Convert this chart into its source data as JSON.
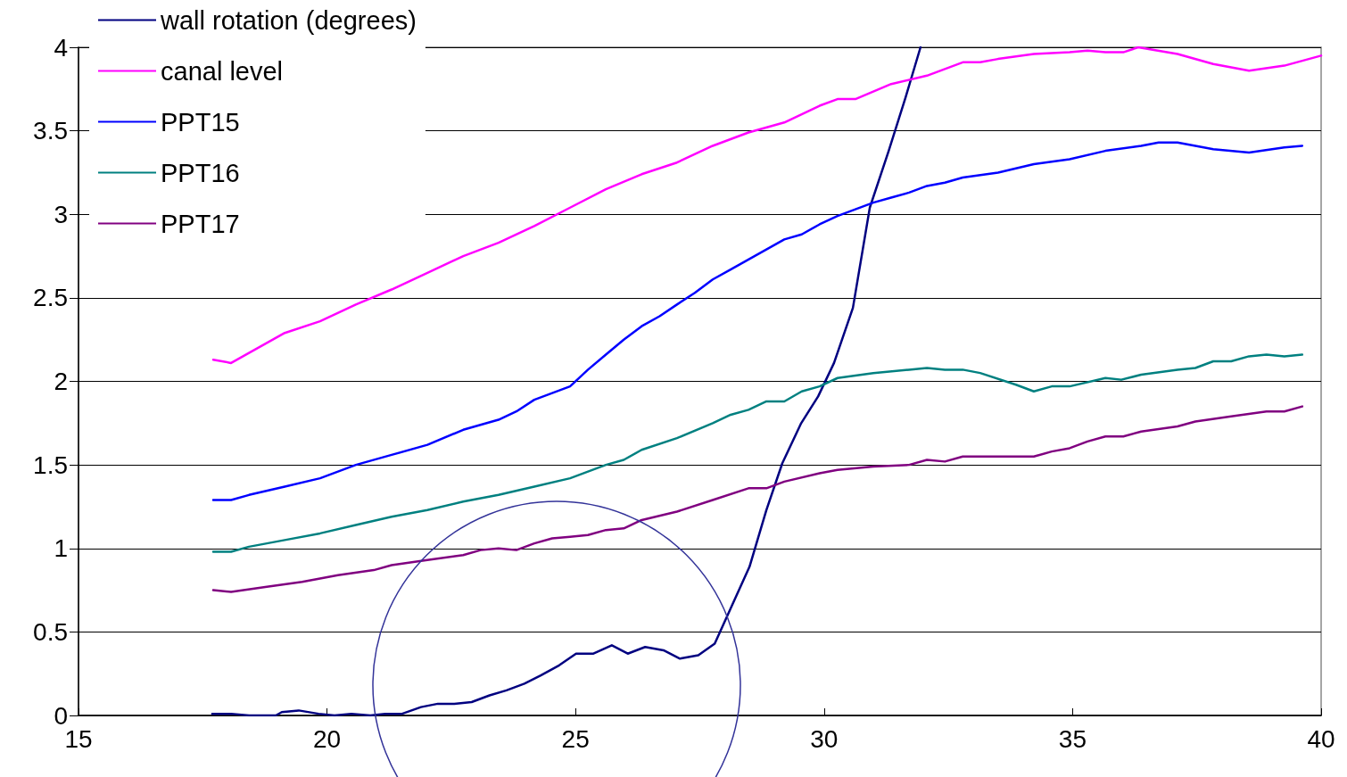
{
  "chart_data": {
    "type": "line",
    "xlim": [
      15,
      40
    ],
    "xticks": [
      15,
      20,
      25,
      30,
      35,
      40
    ],
    "ylim": [
      0,
      4
    ],
    "yticks": [
      0,
      0.5,
      1,
      1.5,
      2,
      2.5,
      3,
      3.5,
      4
    ],
    "grid": "y",
    "legend": "top left",
    "marker": "none",
    "line_style": "solid",
    "series": [
      {
        "name": "wall rotation (degrees)",
        "color": "#000080",
        "x": [
          17.69,
          18.07,
          18.43,
          18.97,
          19.09,
          19.43,
          19.83,
          20.15,
          20.49,
          20.87,
          21.17,
          21.51,
          21.89,
          22.23,
          22.56,
          22.91,
          23.27,
          23.61,
          23.97,
          24.3,
          24.67,
          25.01,
          25.36,
          25.73,
          26.05,
          26.4,
          26.77,
          27.1,
          27.47,
          27.8,
          28.5,
          28.84,
          29.16,
          29.54,
          29.88,
          30.2,
          30.58,
          30.92,
          31.3,
          31.64,
          31.94
        ],
        "values": [
          0.01,
          0.01,
          0,
          0,
          0.02,
          0.03,
          0.01,
          0,
          0.01,
          0,
          0.01,
          0.01,
          0.05,
          0.07,
          0.07,
          0.08,
          0.12,
          0.15,
          0.19,
          0.24,
          0.3,
          0.37,
          0.37,
          0.42,
          0.37,
          0.41,
          0.39,
          0.34,
          0.36,
          0.43,
          0.89,
          1.23,
          1.51,
          1.75,
          1.91,
          2.11,
          2.44,
          3.04,
          3.38,
          3.7,
          4
        ]
      },
      {
        "name": "canal level",
        "color": "#ff00ff",
        "x": [
          17.71,
          18.07,
          18.43,
          19.15,
          19.86,
          20.58,
          21.3,
          22.02,
          22.74,
          23.45,
          24.17,
          24.89,
          25.61,
          26.33,
          27.04,
          27.76,
          28.48,
          29.2,
          29.91,
          30.27,
          30.63,
          31.35,
          32.07,
          32.79,
          33.14,
          33.5,
          34.22,
          34.94,
          35.3,
          35.66,
          36.02,
          36.32,
          37.11,
          37.83,
          38.55,
          39.26,
          40
        ],
        "values": [
          2.13,
          2.11,
          2.17,
          2.29,
          2.36,
          2.46,
          2.55,
          2.65,
          2.75,
          2.83,
          2.93,
          3.04,
          3.15,
          3.24,
          3.31,
          3.41,
          3.49,
          3.55,
          3.65,
          3.69,
          3.69,
          3.78,
          3.83,
          3.91,
          3.91,
          3.93,
          3.96,
          3.97,
          3.98,
          3.97,
          3.97,
          4,
          3.96,
          3.9,
          3.86,
          3.89,
          3.95
        ]
      },
      {
        "name": "PPT15",
        "color": "#0000ff",
        "x": [
          17.71,
          18.07,
          18.43,
          19.15,
          19.86,
          20.58,
          21.3,
          22.02,
          22.74,
          23.45,
          23.81,
          24.17,
          24.89,
          25.25,
          25.61,
          25.97,
          26.33,
          26.69,
          27.04,
          27.4,
          27.76,
          28.12,
          28.48,
          28.84,
          29.2,
          29.55,
          29.91,
          30.27,
          30.63,
          30.99,
          31.35,
          31.71,
          32.07,
          32.43,
          32.79,
          33.5,
          34.22,
          34.94,
          35.66,
          36.38,
          36.73,
          37.11,
          37.83,
          38.55,
          39.26,
          39.62
        ],
        "values": [
          1.29,
          1.29,
          1.32,
          1.37,
          1.42,
          1.5,
          1.56,
          1.62,
          1.71,
          1.77,
          1.82,
          1.89,
          1.97,
          2.07,
          2.16,
          2.25,
          2.33,
          2.39,
          2.46,
          2.53,
          2.61,
          2.67,
          2.73,
          2.79,
          2.85,
          2.88,
          2.94,
          2.99,
          3.03,
          3.07,
          3.1,
          3.13,
          3.17,
          3.19,
          3.22,
          3.25,
          3.3,
          3.33,
          3.38,
          3.41,
          3.43,
          3.43,
          3.39,
          3.37,
          3.4,
          3.41
        ]
      },
      {
        "name": "PPT16",
        "color": "#008080",
        "x": [
          17.71,
          18.07,
          18.43,
          19.15,
          19.86,
          20.58,
          21.3,
          22.02,
          22.74,
          23.45,
          24.17,
          24.89,
          25.61,
          25.97,
          26.33,
          27.04,
          27.76,
          28.12,
          28.48,
          28.84,
          29.2,
          29.55,
          29.91,
          30.27,
          30.99,
          31.71,
          32.07,
          32.43,
          32.79,
          33.14,
          33.86,
          34.22,
          34.58,
          34.94,
          35.66,
          35.98,
          36.38,
          37.11,
          37.47,
          37.83,
          38.19,
          38.55,
          38.9,
          39.26,
          39.62
        ],
        "values": [
          0.98,
          0.98,
          1.01,
          1.05,
          1.09,
          1.14,
          1.19,
          1.23,
          1.28,
          1.32,
          1.37,
          1.42,
          1.5,
          1.53,
          1.59,
          1.66,
          1.75,
          1.8,
          1.83,
          1.88,
          1.88,
          1.94,
          1.97,
          2.02,
          2.05,
          2.07,
          2.08,
          2.07,
          2.07,
          2.05,
          1.98,
          1.94,
          1.97,
          1.97,
          2.02,
          2.01,
          2.04,
          2.07,
          2.08,
          2.12,
          2.12,
          2.15,
          2.16,
          2.15,
          2.16
        ]
      },
      {
        "name": "PPT17",
        "color": "#800080",
        "x": [
          17.71,
          18.07,
          18.79,
          19.5,
          20.22,
          20.94,
          21.3,
          22.02,
          22.74,
          23.09,
          23.45,
          23.81,
          24.17,
          24.53,
          24.89,
          25.25,
          25.61,
          25.97,
          26.33,
          27.04,
          27.76,
          28.48,
          28.84,
          29.2,
          29.91,
          30.27,
          30.99,
          31.71,
          32.07,
          32.43,
          32.79,
          33.5,
          34.22,
          34.58,
          34.94,
          35.3,
          35.66,
          36.02,
          36.38,
          37.11,
          37.47,
          38.19,
          38.9,
          39.26,
          39.62
        ],
        "values": [
          0.75,
          0.74,
          0.77,
          0.8,
          0.84,
          0.87,
          0.9,
          0.93,
          0.96,
          0.99,
          1,
          0.99,
          1.03,
          1.06,
          1.07,
          1.08,
          1.11,
          1.12,
          1.17,
          1.22,
          1.29,
          1.36,
          1.36,
          1.4,
          1.45,
          1.47,
          1.49,
          1.5,
          1.53,
          1.52,
          1.55,
          1.55,
          1.55,
          1.58,
          1.6,
          1.64,
          1.67,
          1.67,
          1.7,
          1.73,
          1.76,
          1.79,
          1.82,
          1.82,
          1.85
        ]
      }
    ]
  }
}
